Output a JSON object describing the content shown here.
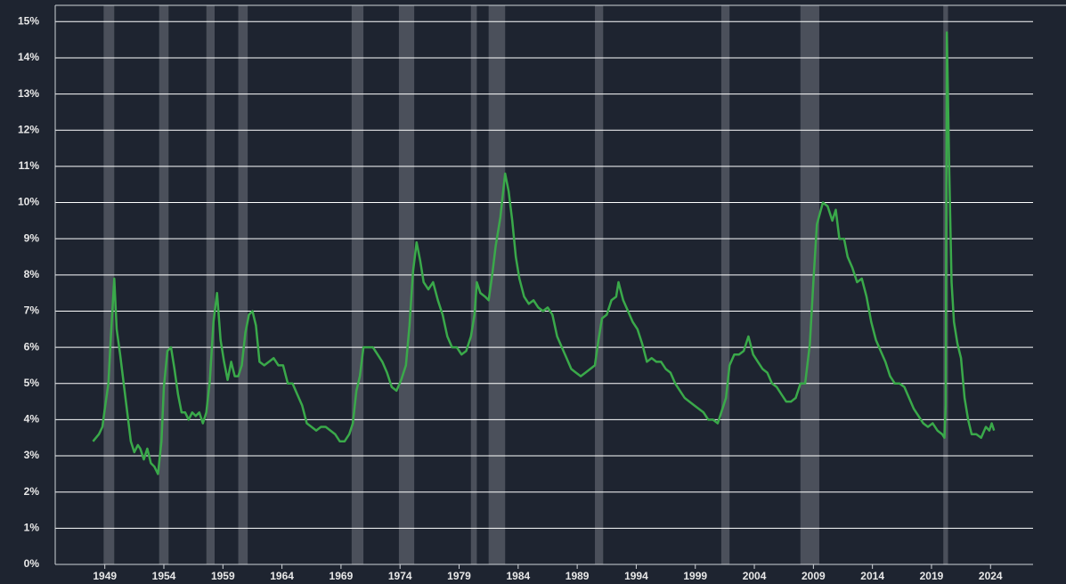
{
  "chart_data": {
    "type": "line",
    "color": "#3aa94a",
    "recession_color": "#4b505b",
    "grid": true,
    "xlim": [
      1944.8,
      2027.6
    ],
    "ylim": [
      0,
      15.45
    ],
    "xticks": [
      1949,
      1954,
      1959,
      1964,
      1969,
      1974,
      1979,
      1984,
      1989,
      1994,
      1999,
      2004,
      2009,
      2014,
      2019,
      2024
    ],
    "yticks": [
      {
        "value": 0,
        "label": "0%"
      },
      {
        "value": 1,
        "label": "1%"
      },
      {
        "value": 2,
        "label": "2%"
      },
      {
        "value": 3,
        "label": "3%"
      },
      {
        "value": 4,
        "label": "4%"
      },
      {
        "value": 5,
        "label": "5%"
      },
      {
        "value": 6,
        "label": "6%"
      },
      {
        "value": 7,
        "label": "7%"
      },
      {
        "value": 8,
        "label": "8%"
      },
      {
        "value": 9,
        "label": "9%"
      },
      {
        "value": 10,
        "label": "10%"
      },
      {
        "value": 11,
        "label": "11%"
      },
      {
        "value": 12,
        "label": "12%"
      },
      {
        "value": 13,
        "label": "13%"
      },
      {
        "value": 14,
        "label": "14%"
      },
      {
        "value": 15,
        "label": "15%"
      }
    ],
    "recessions": [
      [
        1948.9,
        1949.8
      ],
      [
        1953.6,
        1954.4
      ],
      [
        1957.6,
        1958.3
      ],
      [
        1960.3,
        1961.1
      ],
      [
        1969.9,
        1970.9
      ],
      [
        1973.9,
        1975.2
      ],
      [
        1980.0,
        1980.5
      ],
      [
        1981.5,
        1982.9
      ],
      [
        1990.5,
        1991.2
      ],
      [
        2001.2,
        2001.9
      ],
      [
        2007.9,
        2009.5
      ],
      [
        2020.0,
        2020.4
      ]
    ],
    "x": [
      1948.0,
      1948.5,
      1948.8,
      1949.0,
      1949.3,
      1949.5,
      1949.8,
      1950.0,
      1950.3,
      1950.6,
      1950.9,
      1951.2,
      1951.5,
      1951.8,
      1952.0,
      1952.3,
      1952.6,
      1952.9,
      1953.2,
      1953.5,
      1953.8,
      1954.0,
      1954.3,
      1954.6,
      1954.9,
      1955.2,
      1955.5,
      1955.8,
      1956.1,
      1956.4,
      1956.7,
      1957.0,
      1957.3,
      1957.6,
      1957.9,
      1958.2,
      1958.5,
      1958.8,
      1959.1,
      1959.4,
      1959.7,
      1960.0,
      1960.3,
      1960.6,
      1960.9,
      1961.2,
      1961.5,
      1961.8,
      1962.1,
      1962.5,
      1962.9,
      1963.3,
      1963.7,
      1964.1,
      1964.5,
      1964.9,
      1965.3,
      1965.7,
      1966.1,
      1966.5,
      1966.9,
      1967.3,
      1967.7,
      1968.1,
      1968.5,
      1968.9,
      1969.3,
      1969.7,
      1970.0,
      1970.3,
      1970.6,
      1970.9,
      1971.3,
      1971.7,
      1972.1,
      1972.5,
      1972.9,
      1973.3,
      1973.7,
      1974.1,
      1974.5,
      1974.8,
      1975.1,
      1975.4,
      1975.7,
      1976.0,
      1976.4,
      1976.8,
      1977.2,
      1977.6,
      1978.0,
      1978.4,
      1978.8,
      1979.2,
      1979.6,
      1980.0,
      1980.3,
      1980.5,
      1980.8,
      1981.2,
      1981.5,
      1981.8,
      1982.1,
      1982.5,
      1982.9,
      1983.2,
      1983.5,
      1983.8,
      1984.1,
      1984.5,
      1984.9,
      1985.3,
      1985.7,
      1986.1,
      1986.5,
      1986.9,
      1987.3,
      1987.7,
      1988.1,
      1988.5,
      1988.9,
      1989.3,
      1989.7,
      1990.1,
      1990.5,
      1990.8,
      1991.1,
      1991.5,
      1991.9,
      1992.3,
      1992.5,
      1992.9,
      1993.3,
      1993.7,
      1994.1,
      1994.5,
      1994.9,
      1995.3,
      1995.7,
      1996.1,
      1996.5,
      1996.9,
      1997.3,
      1997.7,
      1998.1,
      1998.5,
      1998.9,
      1999.3,
      1999.7,
      2000.1,
      2000.5,
      2000.9,
      2001.2,
      2001.6,
      2001.9,
      2002.3,
      2002.7,
      2003.1,
      2003.5,
      2003.9,
      2004.3,
      2004.7,
      2005.1,
      2005.5,
      2005.9,
      2006.3,
      2006.7,
      2007.1,
      2007.5,
      2007.9,
      2008.3,
      2008.7,
      2009.0,
      2009.3,
      2009.8,
      2010.2,
      2010.6,
      2010.9,
      2011.2,
      2011.6,
      2011.9,
      2012.3,
      2012.7,
      2013.1,
      2013.5,
      2013.9,
      2014.3,
      2014.7,
      2015.1,
      2015.5,
      2015.9,
      2016.3,
      2016.7,
      2017.1,
      2017.5,
      2017.9,
      2018.3,
      2018.7,
      2019.1,
      2019.5,
      2019.9,
      2020.1,
      2020.2,
      2020.3,
      2020.5,
      2020.7,
      2020.9,
      2021.2,
      2021.5,
      2021.8,
      2022.1,
      2022.4,
      2022.8,
      2023.2,
      2023.6,
      2023.9,
      2024.1,
      2024.3
    ],
    "values": [
      3.4,
      3.6,
      3.8,
      4.3,
      5.0,
      6.2,
      7.9,
      6.5,
      5.8,
      5.0,
      4.2,
      3.4,
      3.1,
      3.3,
      3.2,
      2.9,
      3.2,
      2.8,
      2.7,
      2.5,
      3.4,
      4.9,
      5.9,
      6.0,
      5.4,
      4.7,
      4.2,
      4.2,
      4.0,
      4.2,
      4.1,
      4.2,
      3.9,
      4.2,
      5.1,
      6.7,
      7.5,
      6.2,
      5.6,
      5.1,
      5.6,
      5.2,
      5.2,
      5.5,
      6.4,
      6.9,
      7.0,
      6.6,
      5.6,
      5.5,
      5.6,
      5.7,
      5.5,
      5.5,
      5.0,
      5.0,
      4.7,
      4.4,
      3.9,
      3.8,
      3.7,
      3.8,
      3.8,
      3.7,
      3.6,
      3.4,
      3.4,
      3.6,
      3.9,
      4.8,
      5.2,
      6.0,
      6.0,
      6.0,
      5.8,
      5.6,
      5.3,
      4.9,
      4.8,
      5.1,
      5.5,
      6.6,
      8.1,
      8.9,
      8.4,
      7.8,
      7.6,
      7.8,
      7.3,
      6.9,
      6.3,
      6.0,
      6.0,
      5.8,
      5.9,
      6.3,
      6.9,
      7.8,
      7.5,
      7.4,
      7.3,
      8.0,
      8.8,
      9.6,
      10.8,
      10.3,
      9.5,
      8.5,
      7.9,
      7.4,
      7.2,
      7.3,
      7.1,
      7.0,
      7.1,
      6.9,
      6.3,
      6.0,
      5.7,
      5.4,
      5.3,
      5.2,
      5.3,
      5.4,
      5.5,
      6.2,
      6.8,
      6.9,
      7.3,
      7.4,
      7.8,
      7.3,
      7.0,
      6.7,
      6.5,
      6.1,
      5.6,
      5.7,
      5.6,
      5.6,
      5.4,
      5.3,
      5.0,
      4.8,
      4.6,
      4.5,
      4.4,
      4.3,
      4.2,
      4.0,
      4.0,
      3.9,
      4.2,
      4.6,
      5.5,
      5.8,
      5.8,
      5.9,
      6.3,
      5.8,
      5.6,
      5.4,
      5.3,
      5.0,
      4.9,
      4.7,
      4.5,
      4.5,
      4.6,
      5.0,
      5.0,
      6.1,
      7.8,
      9.4,
      10.0,
      9.9,
      9.5,
      9.8,
      9.0,
      9.0,
      8.5,
      8.2,
      7.8,
      7.9,
      7.4,
      6.7,
      6.2,
      5.9,
      5.6,
      5.2,
      5.0,
      5.0,
      4.9,
      4.6,
      4.3,
      4.1,
      3.9,
      3.8,
      3.9,
      3.7,
      3.6,
      3.5,
      4.4,
      14.7,
      11.0,
      7.8,
      6.7,
      6.1,
      5.7,
      4.6,
      4.0,
      3.6,
      3.6,
      3.5,
      3.8,
      3.7,
      3.9,
      3.7
    ]
  }
}
